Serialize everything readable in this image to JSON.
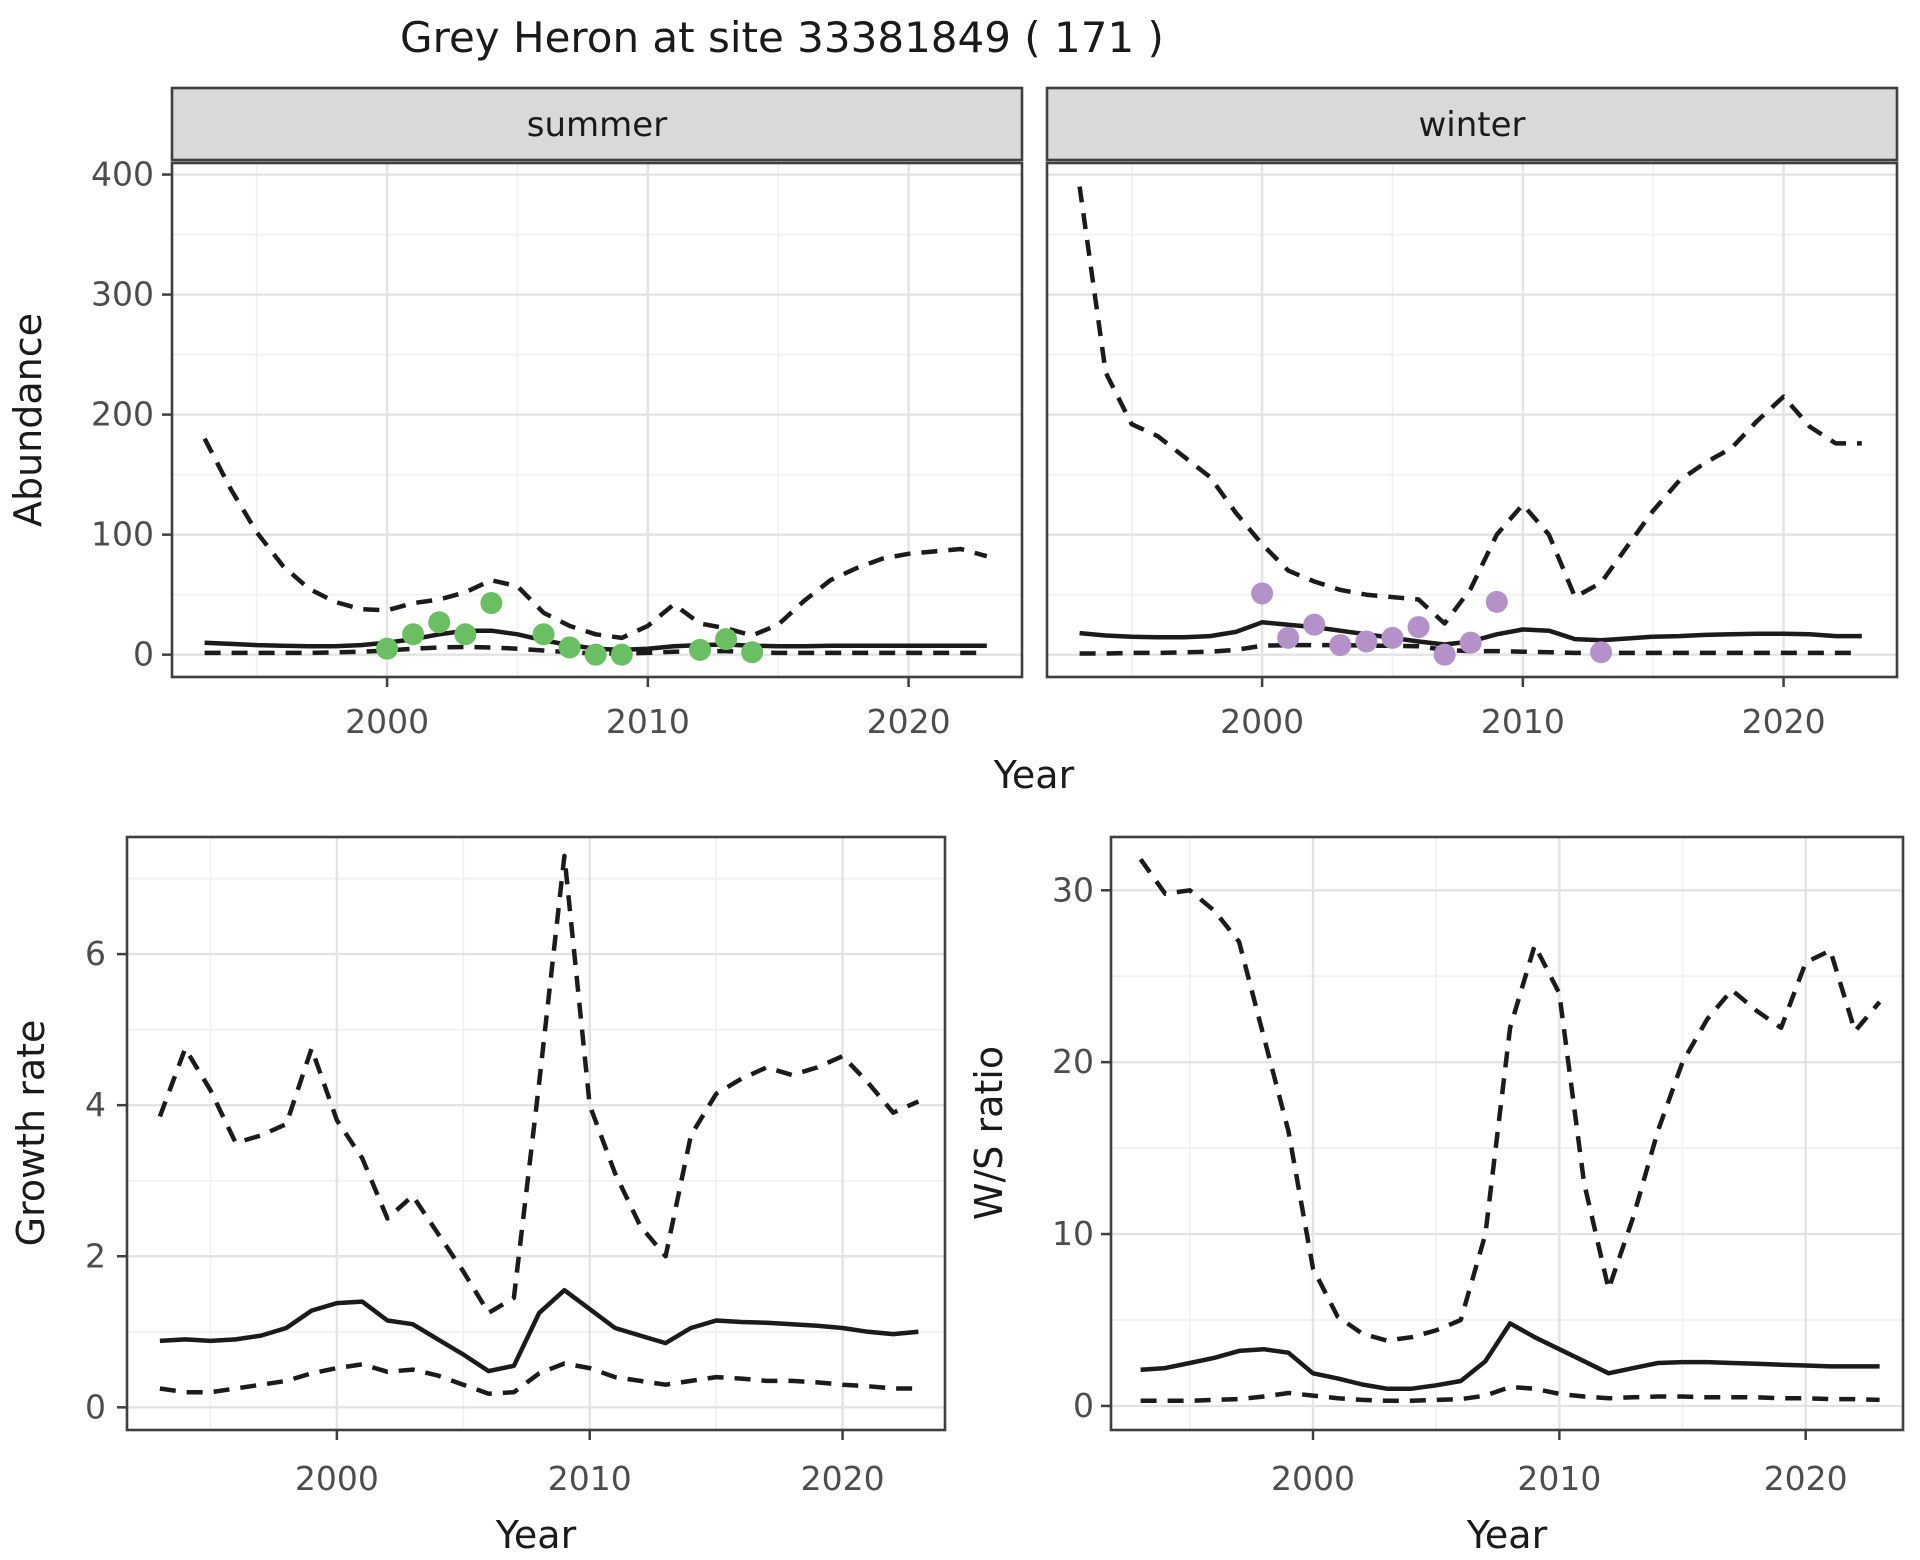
{
  "title": "Grey Heron at site 33381849 ( 171 )",
  "colors": {
    "line": "#1b1b1b",
    "summer_points": "#6abf63",
    "winter_points": "#b491c8",
    "strip_bg": "#d9d9d9",
    "border": "#3f3f3f",
    "grid_major": "#e3e3e3",
    "grid_minor": "#f1f1f1",
    "text": "#1a1a1a",
    "tick_text": "#4d4d4d",
    "background": "#ffffff"
  },
  "chart_data": [
    {
      "id": "abundance",
      "type": "line",
      "title": "",
      "xlabel": "Year",
      "ylabel": "Abundance",
      "xticks": [
        2000,
        2010,
        2020
      ],
      "x_minor": [
        1995,
        2005,
        2015
      ],
      "yticks": [
        0,
        100,
        200,
        300,
        400
      ],
      "y_minor": [
        50,
        150,
        250,
        350
      ],
      "xlim": [
        1991.75,
        2024.35
      ],
      "ylim": [
        -18.6,
        409.6
      ],
      "grid": true,
      "legend": "none",
      "years": [
        1993,
        1994,
        1995,
        1996,
        1997,
        1998,
        1999,
        2000,
        2001,
        2002,
        2003,
        2004,
        2005,
        2006,
        2007,
        2008,
        2009,
        2010,
        2011,
        2012,
        2013,
        2014,
        2015,
        2016,
        2017,
        2018,
        2019,
        2020,
        2021,
        2022,
        2023
      ],
      "panels": [
        {
          "label": "summer",
          "point_color": "#6abf63",
          "points": {
            "x": [
              2000,
              2001,
              2002,
              2003,
              2004,
              2006,
              2007,
              2008,
              2009,
              2012,
              2013,
              2014
            ],
            "y": [
              5,
              17,
              27,
              17,
              43,
              17,
              6,
              0,
              0,
              4,
              13,
              2
            ]
          },
          "series": {
            "upper": [
              180,
              138,
              102,
              74,
              55,
              44,
              38,
              37,
              43,
              46,
              52,
              62,
              57,
              35,
              24,
              17,
              14,
              24,
              42,
              26,
              22,
              16,
              25,
              45,
              62,
              72,
              80,
              84,
              86,
              88,
              82
            ],
            "median": [
              10,
              9,
              8,
              7.5,
              7,
              7,
              8,
              10,
              13,
              17,
              20,
              20,
              17,
              12,
              8,
              5,
              4,
              5,
              7,
              8,
              8.5,
              7.5,
              7,
              7,
              7.5,
              7.5,
              7.5,
              7.5,
              7.5,
              7.5,
              7.5
            ],
            "lower": [
              1.5,
              1.5,
              1.5,
              1.5,
              1.5,
              2,
              2.5,
              3.5,
              5,
              6,
              6.5,
              6,
              5,
              3.5,
              2,
              1,
              1,
              1.5,
              2.5,
              3,
              3,
              2,
              1.5,
              1.5,
              1.5,
              1.5,
              1.5,
              1.5,
              1.5,
              1.5,
              1.5
            ]
          }
        },
        {
          "label": "winter",
          "point_color": "#b491c8",
          "points": {
            "x": [
              2000,
              2001,
              2002,
              2003,
              2004,
              2005,
              2006,
              2007,
              2008,
              2009,
              2013
            ],
            "y": [
              51,
              14,
              25,
              8,
              11,
              14,
              23,
              0,
              10,
              44,
              2
            ]
          },
          "series": {
            "upper": [
              390,
              235,
              192,
              182,
              165,
              148,
              118,
              92,
              70,
              61,
              54,
              50,
              48,
              46,
              26,
              55,
              100,
              125,
              100,
              48,
              60,
              90,
              120,
              145,
              160,
              172,
              195,
              215,
              190,
              176,
              176
            ],
            "median": [
              18,
              16,
              15,
              14.5,
              14.5,
              15.5,
              19,
              27,
              25,
              23,
              20,
              17,
              14,
              11,
              8.5,
              11,
              17,
              21,
              20,
              13,
              12,
              13.5,
              15,
              15.5,
              16.5,
              17,
              17.5,
              17.5,
              17,
              15.5,
              15.5
            ],
            "lower": [
              1,
              1,
              1.5,
              1.5,
              2,
              2.5,
              4,
              7.5,
              8,
              8,
              8,
              7.5,
              7.5,
              7,
              4,
              3,
              3,
              2.5,
              2,
              1.5,
              1.5,
              1.5,
              1.5,
              1.5,
              1.5,
              1.5,
              1.5,
              1.5,
              1.5,
              1.5,
              1.5
            ]
          }
        }
      ]
    },
    {
      "id": "growth_rate",
      "type": "line",
      "title": "",
      "xlabel": "Year",
      "ylabel": "Growth rate",
      "xticks": [
        2000,
        2010,
        2020
      ],
      "x_minor": [
        1995,
        2005,
        2015
      ],
      "yticks": [
        0,
        2,
        4,
        6
      ],
      "y_minor": [
        1,
        3,
        5,
        7
      ],
      "xlim": [
        1991.7,
        2024.05
      ],
      "ylim": [
        -0.3,
        7.55
      ],
      "grid": true,
      "legend": "none",
      "years": [
        1993,
        1994,
        1995,
        1996,
        1997,
        1998,
        1999,
        2000,
        2001,
        2002,
        2003,
        2004,
        2005,
        2006,
        2007,
        2008,
        2009,
        2010,
        2011,
        2012,
        2013,
        2014,
        2015,
        2016,
        2017,
        2018,
        2019,
        2020,
        2021,
        2022,
        2023
      ],
      "panels": [
        {
          "series": {
            "upper": [
              3.85,
              4.75,
              4.2,
              3.5,
              3.6,
              3.75,
              4.75,
              3.8,
              3.3,
              2.5,
              2.8,
              2.3,
              1.8,
              1.25,
              1.45,
              4.3,
              7.3,
              4.0,
              3.1,
              2.4,
              2.0,
              3.6,
              4.15,
              4.35,
              4.5,
              4.4,
              4.5,
              4.65,
              4.3,
              3.9,
              4.05
            ],
            "median": [
              0.88,
              0.9,
              0.88,
              0.9,
              0.95,
              1.05,
              1.28,
              1.38,
              1.4,
              1.15,
              1.1,
              0.9,
              0.7,
              0.48,
              0.55,
              1.25,
              1.55,
              1.3,
              1.05,
              0.95,
              0.85,
              1.05,
              1.15,
              1.13,
              1.12,
              1.1,
              1.08,
              1.05,
              1.0,
              0.97,
              1.0
            ],
            "lower": [
              0.25,
              0.2,
              0.2,
              0.25,
              0.3,
              0.35,
              0.45,
              0.52,
              0.57,
              0.47,
              0.5,
              0.42,
              0.3,
              0.18,
              0.2,
              0.45,
              0.58,
              0.52,
              0.4,
              0.35,
              0.3,
              0.35,
              0.4,
              0.38,
              0.35,
              0.35,
              0.33,
              0.3,
              0.28,
              0.25,
              0.25
            ]
          }
        }
      ]
    },
    {
      "id": "ws_ratio",
      "type": "line",
      "title": "",
      "xlabel": "Year",
      "ylabel": "W/S ratio",
      "xticks": [
        2000,
        2010,
        2020
      ],
      "x_minor": [
        1995,
        2005,
        2015
      ],
      "yticks": [
        0,
        10,
        20,
        30
      ],
      "y_minor": [
        5,
        15,
        25
      ],
      "xlim": [
        1991.8,
        2023.95
      ],
      "ylim": [
        -1.4,
        33.1
      ],
      "grid": true,
      "legend": "none",
      "years": [
        1993,
        1994,
        1995,
        1996,
        1997,
        1998,
        1999,
        2000,
        2001,
        2002,
        2003,
        2004,
        2005,
        2006,
        2007,
        2008,
        2009,
        2010,
        2011,
        2012,
        2013,
        2014,
        2015,
        2016,
        2017,
        2018,
        2019,
        2020,
        2021,
        2022,
        2023
      ],
      "panels": [
        {
          "series": {
            "upper": [
              31.8,
              29.8,
              30.0,
              28.8,
              27.0,
              21.5,
              16.0,
              8.0,
              5.2,
              4.2,
              3.8,
              4.0,
              4.4,
              5.0,
              10.0,
              22.0,
              26.8,
              24.0,
              13.0,
              6.8,
              11.0,
              16.0,
              20.0,
              22.5,
              24.2,
              23.0,
              22.0,
              25.8,
              26.5,
              21.8,
              23.5
            ],
            "median": [
              2.1,
              2.2,
              2.5,
              2.8,
              3.2,
              3.3,
              3.1,
              1.9,
              1.6,
              1.25,
              1.0,
              1.0,
              1.2,
              1.45,
              2.6,
              4.8,
              4.0,
              3.3,
              2.6,
              1.9,
              2.2,
              2.5,
              2.55,
              2.55,
              2.5,
              2.45,
              2.4,
              2.35,
              2.3,
              2.3,
              2.3
            ],
            "lower": [
              0.3,
              0.3,
              0.3,
              0.35,
              0.4,
              0.55,
              0.75,
              0.6,
              0.45,
              0.35,
              0.3,
              0.3,
              0.35,
              0.4,
              0.6,
              1.1,
              1.0,
              0.7,
              0.55,
              0.45,
              0.5,
              0.55,
              0.55,
              0.5,
              0.5,
              0.5,
              0.45,
              0.45,
              0.4,
              0.4,
              0.35
            ]
          }
        }
      ]
    }
  ]
}
